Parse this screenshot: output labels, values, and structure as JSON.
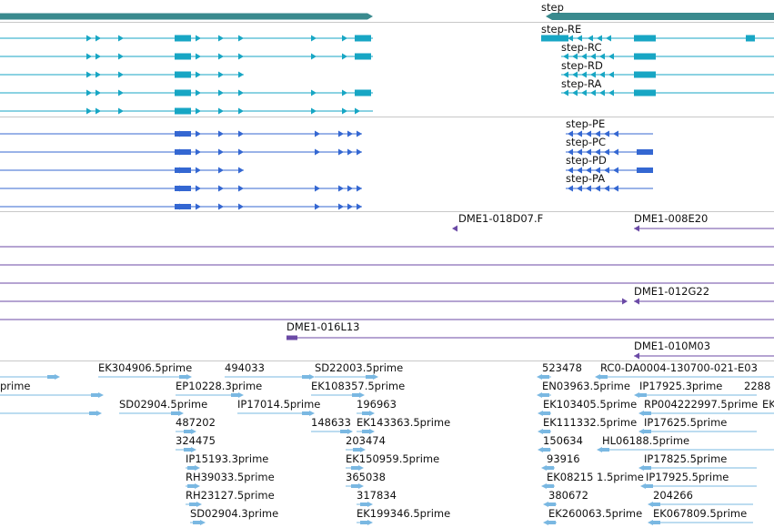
{
  "gene": {
    "label": "step"
  },
  "transcripts_rna": [
    "step-RE",
    "step-RC",
    "step-RD",
    "step-RA"
  ],
  "transcripts_protein": [
    "step-PE",
    "step-PC",
    "step-PD",
    "step-PA"
  ],
  "bac_clones": [
    "DME1-018D07.F",
    "DME1-008E20",
    "DME1-012G22",
    "DME1-016L13",
    "DME1-010M03"
  ],
  "est_left": [
    "prime",
    "EK304906.5prime",
    "494033",
    "SD22003.5prime",
    "EP10228.3prime",
    "EK108357.5prime",
    "SD02904.5prime",
    "IP17014.5prime",
    "196963",
    "487202",
    "148633",
    "EK143363.5prime",
    "324475",
    "203474",
    "IP15193.3prime",
    "EK150959.5prime",
    "RH39033.5prime",
    "365038",
    "RH23127.5prime",
    "317834",
    "SD02904.3prime",
    "EK199346.5prime"
  ],
  "est_right": [
    "523478",
    "RC0-DA0004-130700-021-E03",
    "EN03963.5prime",
    "IP17925.3prime",
    "2288",
    "EK103405.5prime",
    "RP004222997.5prime",
    "EK",
    "EK111332.5prime",
    "IP17625.5prime",
    "150634",
    "HL06188.5prime",
    "93916",
    "IP17825.5prime",
    "EK08215",
    "1.5prime",
    "IP17925.5prime",
    "380672",
    "204266",
    "EK260063.5prime",
    "EK067809.5prime"
  ],
  "colors": {
    "gene": "#3a8a8e",
    "rna": "#17a6c4",
    "protein": "#3467d2",
    "bac": "#6b4aa6",
    "est": "#7ab8e2",
    "separator": "#c8c8c8"
  }
}
